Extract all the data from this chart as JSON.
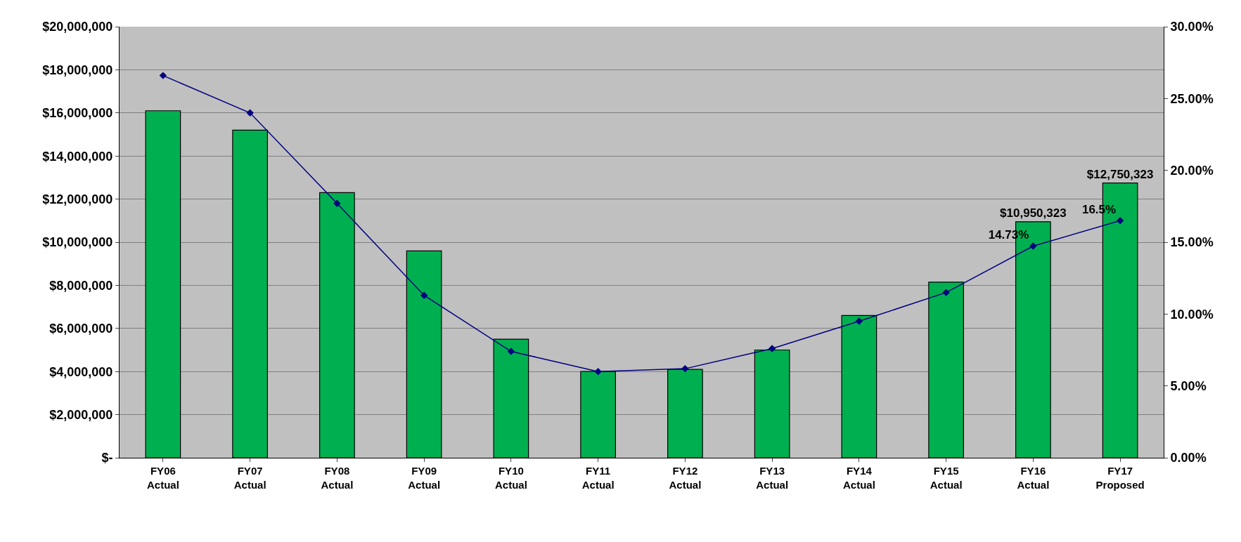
{
  "chart_data": {
    "type": "bar",
    "categories": [
      "FY06\nActual",
      "FY07\nActual",
      "FY08\nActual",
      "FY09\nActual",
      "FY10\nActual",
      "FY11\nActual",
      "FY12\nActual",
      "FY13\nActual",
      "FY14\nActual",
      "FY15\nActual",
      "FY16\nActual",
      "FY17\nProposed"
    ],
    "series": [
      {
        "color": "#00b050",
        "values": [
          16100000,
          15200000,
          12300000,
          9600000,
          5500000,
          4000000,
          4100000,
          5000000,
          6600000,
          8150000,
          10950323,
          12750323
        ],
        "value_labels": [
          null,
          null,
          null,
          null,
          null,
          null,
          null,
          null,
          null,
          null,
          "$10,950,323",
          "$12,750,323"
        ]
      },
      {
        "type": "line",
        "axis": "y2",
        "color": "#000080",
        "marker": "diamond",
        "values": [
          26.6,
          24.0,
          17.7,
          11.3,
          7.4,
          6.0,
          6.2,
          7.6,
          9.5,
          11.5,
          14.73,
          16.5
        ],
        "value_labels": [
          null,
          null,
          null,
          null,
          null,
          null,
          null,
          null,
          null,
          null,
          "14.73%",
          "16.5%"
        ]
      }
    ],
    "ylim": [
      0,
      20000000
    ],
    "yticks": [
      {
        "value": 0,
        "label": "$-"
      },
      {
        "value": 2000000,
        "label": "$2,000,000"
      },
      {
        "value": 4000000,
        "label": "$4,000,000"
      },
      {
        "value": 6000000,
        "label": "$6,000,000"
      },
      {
        "value": 8000000,
        "label": "$8,000,000"
      },
      {
        "value": 10000000,
        "label": "$10,000,000"
      },
      {
        "value": 12000000,
        "label": "$12,000,000"
      },
      {
        "value": 14000000,
        "label": "$14,000,000"
      },
      {
        "value": 16000000,
        "label": "$16,000,000"
      },
      {
        "value": 18000000,
        "label": "$18,000,000"
      },
      {
        "value": 20000000,
        "label": "$20,000,000"
      }
    ],
    "y2lim": [
      0,
      30
    ],
    "y2ticks": [
      {
        "value": 0,
        "label": "0.00%"
      },
      {
        "value": 5,
        "label": "5.00%"
      },
      {
        "value": 10,
        "label": "10.00%"
      },
      {
        "value": 15,
        "label": "15.00%"
      },
      {
        "value": 20,
        "label": "20.00%"
      },
      {
        "value": 25,
        "label": "25.00%"
      },
      {
        "value": 30,
        "label": "30.00%"
      }
    ],
    "grid": "y"
  }
}
